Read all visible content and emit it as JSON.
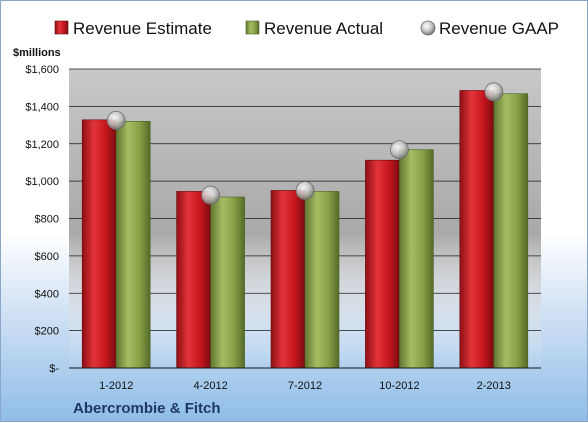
{
  "chart_data": {
    "type": "bar",
    "unit_label": "$millions",
    "company": "Abercrombie & Fitch",
    "categories": [
      "1-2012",
      "4-2012",
      "7-2012",
      "10-2012",
      "2-2013"
    ],
    "y_ticks": [
      "$-",
      "$200",
      "$400",
      "$600",
      "$800",
      "$1,000",
      "$1,200",
      "$1,400",
      "$1,600"
    ],
    "ylim": [
      0,
      1600
    ],
    "grid": true,
    "legend_position": "top",
    "series": [
      {
        "name": "Revenue Estimate",
        "kind": "bar",
        "color": "#d42028",
        "values": [
          1328,
          945,
          950,
          1112,
          1485
        ]
      },
      {
        "name": "Revenue Actual",
        "kind": "bar",
        "color": "#8aa34a",
        "values": [
          1320,
          915,
          945,
          1168,
          1468
        ]
      },
      {
        "name": "Revenue GAAP",
        "kind": "marker",
        "color": "#b8b8b8",
        "values": [
          1325,
          925,
          950,
          1168,
          1478
        ]
      }
    ]
  }
}
